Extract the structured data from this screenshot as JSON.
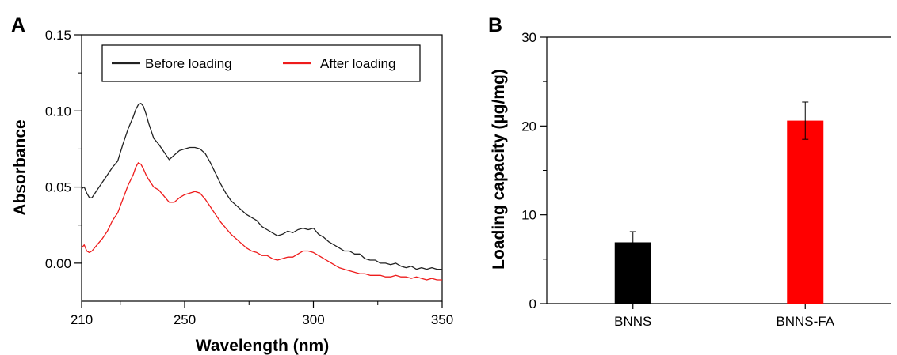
{
  "chart_data": [
    {
      "panel": "A",
      "type": "line",
      "xlabel": "Wavelength (nm)",
      "ylabel": "Absorbance",
      "xlim": [
        210,
        350
      ],
      "ylim": [
        -0.025,
        0.15
      ],
      "xticks": [
        210,
        250,
        300,
        350
      ],
      "yticks": [
        0.0,
        0.05,
        0.1,
        0.15
      ],
      "ytick_labels": [
        "0.00",
        "0.05",
        "0.10",
        "0.15"
      ],
      "legend_placement": "top",
      "series": [
        {
          "name": "Before loading",
          "color": "#222222",
          "x": [
            210,
            211,
            212,
            213,
            214,
            216,
            218,
            220,
            222,
            224,
            226,
            228,
            230,
            231,
            232,
            233,
            234,
            235,
            236,
            238,
            240,
            242,
            244,
            246,
            248,
            250,
            252,
            254,
            256,
            258,
            260,
            262,
            264,
            266,
            268,
            270,
            272,
            274,
            276,
            278,
            280,
            282,
            284,
            286,
            288,
            290,
            292,
            294,
            296,
            298,
            300,
            302,
            304,
            306,
            308,
            310,
            312,
            314,
            316,
            318,
            320,
            322,
            324,
            326,
            328,
            330,
            332,
            334,
            336,
            338,
            340,
            342,
            344,
            346,
            348,
            350
          ],
          "values": [
            0.049,
            0.05,
            0.046,
            0.043,
            0.043,
            0.048,
            0.053,
            0.058,
            0.063,
            0.067,
            0.078,
            0.088,
            0.096,
            0.101,
            0.104,
            0.105,
            0.103,
            0.098,
            0.092,
            0.082,
            0.078,
            0.073,
            0.068,
            0.071,
            0.074,
            0.075,
            0.076,
            0.076,
            0.075,
            0.072,
            0.066,
            0.059,
            0.052,
            0.046,
            0.041,
            0.038,
            0.035,
            0.032,
            0.03,
            0.028,
            0.024,
            0.022,
            0.02,
            0.018,
            0.019,
            0.021,
            0.02,
            0.022,
            0.023,
            0.022,
            0.023,
            0.019,
            0.017,
            0.014,
            0.012,
            0.01,
            0.008,
            0.008,
            0.006,
            0.006,
            0.003,
            0.002,
            0.002,
            0.0,
            0.0,
            -0.001,
            0.0,
            -0.002,
            -0.003,
            -0.002,
            -0.004,
            -0.003,
            -0.004,
            -0.003,
            -0.004,
            -0.004
          ]
        },
        {
          "name": "After loading",
          "color": "#ee1c1c",
          "x": [
            210,
            211,
            212,
            213,
            214,
            216,
            218,
            220,
            222,
            224,
            226,
            228,
            230,
            231,
            232,
            233,
            234,
            235,
            236,
            238,
            240,
            242,
            244,
            246,
            248,
            250,
            252,
            254,
            256,
            258,
            260,
            262,
            264,
            266,
            268,
            270,
            272,
            274,
            276,
            278,
            280,
            282,
            284,
            286,
            288,
            290,
            292,
            294,
            296,
            298,
            300,
            302,
            304,
            306,
            308,
            310,
            312,
            314,
            316,
            318,
            320,
            322,
            324,
            326,
            328,
            330,
            332,
            334,
            336,
            338,
            340,
            342,
            344,
            346,
            348,
            350
          ],
          "values": [
            0.01,
            0.012,
            0.008,
            0.007,
            0.008,
            0.012,
            0.016,
            0.021,
            0.028,
            0.033,
            0.042,
            0.051,
            0.058,
            0.063,
            0.066,
            0.065,
            0.062,
            0.058,
            0.055,
            0.05,
            0.048,
            0.044,
            0.04,
            0.04,
            0.043,
            0.045,
            0.046,
            0.047,
            0.046,
            0.042,
            0.037,
            0.032,
            0.027,
            0.023,
            0.019,
            0.016,
            0.013,
            0.01,
            0.008,
            0.007,
            0.005,
            0.005,
            0.003,
            0.002,
            0.003,
            0.004,
            0.004,
            0.006,
            0.008,
            0.008,
            0.007,
            0.005,
            0.003,
            0.001,
            -0.001,
            -0.003,
            -0.004,
            -0.005,
            -0.006,
            -0.007,
            -0.007,
            -0.008,
            -0.008,
            -0.008,
            -0.009,
            -0.009,
            -0.008,
            -0.009,
            -0.009,
            -0.01,
            -0.009,
            -0.01,
            -0.011,
            -0.01,
            -0.011,
            -0.011
          ]
        }
      ]
    },
    {
      "panel": "B",
      "type": "bar",
      "xlabel": "",
      "ylabel": "Loading capacity (µg/mg)",
      "ylim": [
        0,
        30
      ],
      "yticks": [
        0,
        10,
        20,
        30
      ],
      "categories": [
        "BNNS",
        "BNNS-FA"
      ],
      "values": [
        6.9,
        20.6
      ],
      "errors": [
        1.2,
        2.1
      ],
      "colors": [
        "#000000",
        "#ff0000"
      ]
    }
  ]
}
